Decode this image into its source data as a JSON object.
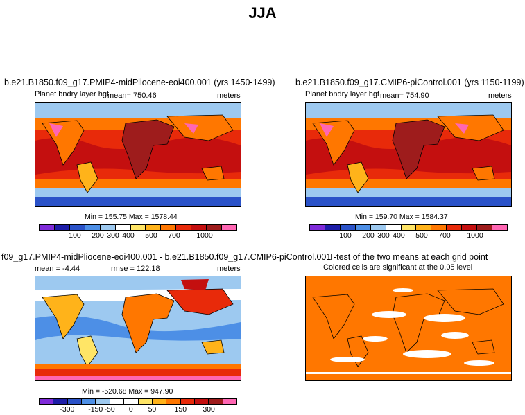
{
  "figure_title": "JJA",
  "chart_data": [
    {
      "type": "heatmap",
      "title": "b.e21.B1850.f09_g17.PMIP4-midPliocene-eoi400.001 (yrs 1450-1499)",
      "variable_label": "Planet bndry layer hgt",
      "mean_text": "mean= 750.46",
      "units": "meters",
      "min": 155.75,
      "max": 1578.44,
      "stats_text": "Min = 155.75  Max = 1578.44",
      "colorbar": {
        "colors": [
          "#7f2bd9",
          "#1d1da8",
          "#2a52c8",
          "#4d8fe6",
          "#9dc9f0",
          "#ffffff",
          "#ffe566",
          "#ffb31a",
          "#ff7700",
          "#e82a0a",
          "#c40f0f",
          "#9e1c1c",
          "#ff66b3"
        ],
        "labels": [
          "100",
          "200",
          "300",
          "400",
          "500",
          "700",
          "1000"
        ]
      }
    },
    {
      "type": "heatmap",
      "title": "b.e21.B1850.f09_g17.CMIP6-piControl.001 (yrs 1150-1199)",
      "variable_label": "Planet bndry layer hgt",
      "mean_text": "mean= 754.90",
      "units": "meters",
      "min": 159.7,
      "max": 1584.37,
      "stats_text": "Min = 159.70  Max = 1584.37",
      "colorbar": {
        "colors": [
          "#7f2bd9",
          "#1d1da8",
          "#2a52c8",
          "#4d8fe6",
          "#9dc9f0",
          "#ffffff",
          "#ffe566",
          "#ffb31a",
          "#ff7700",
          "#e82a0a",
          "#c40f0f",
          "#9e1c1c",
          "#ff66b3"
        ],
        "labels": [
          "100",
          "200",
          "300",
          "400",
          "500",
          "700",
          "1000"
        ]
      }
    },
    {
      "type": "heatmap",
      "title": "f09_g17.PMIP4-midPliocene-eoi400.001 - b.e21.B1850.f09_g17.CMIP6-piControl.001",
      "mean_text": "mean =  -4.44",
      "rmse_text": "rmse = 122.18",
      "units": "meters",
      "min": -520.68,
      "max": 947.9,
      "stats_text": "Min = -520.68  Max = 947.90",
      "colorbar": {
        "colors": [
          "#7f2bd9",
          "#1d1da8",
          "#2a52c8",
          "#4d8fe6",
          "#9dc9f0",
          "#ffffff",
          "#ffffff",
          "#ffe566",
          "#ffb31a",
          "#ff7700",
          "#e82a0a",
          "#c40f0f",
          "#9e1c1c",
          "#ff66b3"
        ],
        "labels": [
          "-300",
          "-150",
          "-50",
          "0",
          "50",
          "150",
          "300"
        ]
      }
    },
    {
      "type": "heatmap",
      "title": "T-test of the two means at each grid point",
      "subtitle": "Colored cells are significant at the 0.05 level",
      "colors": {
        "significant": "#ff7700",
        "not_significant": "#ffffff"
      }
    }
  ]
}
